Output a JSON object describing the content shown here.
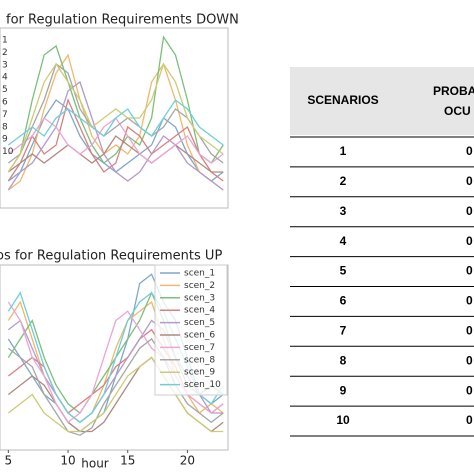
{
  "chart_data": [
    {
      "type": "line",
      "title": "for Regulation Requirements DOWN",
      "x": [
        5,
        6,
        7,
        8,
        9,
        10,
        11,
        12,
        13,
        14,
        15,
        16,
        17,
        18,
        19,
        20,
        21,
        22,
        23
      ],
      "xlim": [
        4.3,
        23.4
      ],
      "ylim": [
        0,
        1
      ],
      "series": [
        {
          "name": "1",
          "color": "#7fa7c9",
          "values": [
            0.15,
            0.2,
            0.35,
            0.5,
            0.6,
            0.55,
            0.4,
            0.3,
            0.25,
            0.2,
            0.25,
            0.3,
            0.35,
            0.5,
            0.45,
            0.3,
            0.2,
            0.15,
            0.2
          ]
        },
        {
          "name": "2",
          "color": "#f0b86e",
          "values": [
            0.1,
            0.15,
            0.3,
            0.55,
            0.75,
            0.85,
            0.6,
            0.4,
            0.3,
            0.35,
            0.3,
            0.4,
            0.7,
            0.8,
            0.6,
            0.35,
            0.2,
            0.15,
            0.1
          ]
        },
        {
          "name": "3",
          "color": "#7bbf7b",
          "values": [
            0.2,
            0.3,
            0.6,
            0.85,
            0.9,
            0.7,
            0.5,
            0.35,
            0.25,
            0.3,
            0.4,
            0.35,
            0.5,
            0.95,
            0.85,
            0.6,
            0.3,
            0.25,
            0.35
          ]
        },
        {
          "name": "4",
          "color": "#d98080",
          "values": [
            0.15,
            0.25,
            0.4,
            0.3,
            0.35,
            0.6,
            0.45,
            0.3,
            0.2,
            0.25,
            0.45,
            0.4,
            0.3,
            0.35,
            0.4,
            0.45,
            0.3,
            0.2,
            0.15
          ]
        },
        {
          "name": "5",
          "color": "#b39bcc",
          "values": [
            0.1,
            0.2,
            0.25,
            0.35,
            0.45,
            0.65,
            0.7,
            0.5,
            0.3,
            0.2,
            0.15,
            0.2,
            0.3,
            0.4,
            0.35,
            0.25,
            0.2,
            0.15,
            0.1
          ]
        },
        {
          "name": "6",
          "color": "#b08a80",
          "values": [
            0.2,
            0.25,
            0.3,
            0.25,
            0.3,
            0.35,
            0.3,
            0.25,
            0.3,
            0.4,
            0.35,
            0.3,
            0.25,
            0.3,
            0.35,
            0.3,
            0.25,
            0.2,
            0.2
          ]
        },
        {
          "name": "7",
          "color": "#eaa6d4",
          "values": [
            0.3,
            0.35,
            0.4,
            0.5,
            0.45,
            0.35,
            0.3,
            0.35,
            0.45,
            0.5,
            0.4,
            0.3,
            0.25,
            0.3,
            0.35,
            0.4,
            0.3,
            0.25,
            0.3
          ]
        },
        {
          "name": "8",
          "color": "#a6a6a6",
          "values": [
            0.25,
            0.3,
            0.45,
            0.6,
            0.8,
            0.75,
            0.55,
            0.45,
            0.4,
            0.45,
            0.5,
            0.45,
            0.4,
            0.45,
            0.55,
            0.5,
            0.4,
            0.3,
            0.25
          ]
        },
        {
          "name": "9",
          "color": "#cccc77",
          "values": [
            0.2,
            0.3,
            0.5,
            0.7,
            0.8,
            0.7,
            0.6,
            0.45,
            0.5,
            0.55,
            0.5,
            0.5,
            0.6,
            0.8,
            0.7,
            0.5,
            0.4,
            0.35,
            0.3
          ]
        },
        {
          "name": "10",
          "color": "#6fcfd9",
          "values": [
            0.35,
            0.4,
            0.45,
            0.4,
            0.5,
            0.55,
            0.5,
            0.45,
            0.4,
            0.5,
            0.55,
            0.45,
            0.4,
            0.5,
            0.6,
            0.55,
            0.45,
            0.4,
            0.35
          ]
        }
      ]
    },
    {
      "type": "line",
      "title": "os for Regulation Requirements UP",
      "xlabel": "hour",
      "x": [
        5,
        6,
        7,
        8,
        9,
        10,
        11,
        12,
        13,
        14,
        15,
        16,
        17,
        18,
        19,
        20,
        21,
        22,
        23
      ],
      "xlim": [
        4.3,
        23.4
      ],
      "xticks": [
        5,
        10,
        15,
        20
      ],
      "ylim": [
        0,
        1
      ],
      "series": [
        {
          "name": "scen_1",
          "color": "#7fa7c9",
          "values": [
            0.6,
            0.5,
            0.4,
            0.3,
            0.25,
            0.15,
            0.1,
            0.15,
            0.2,
            0.4,
            0.6,
            0.9,
            0.95,
            0.8,
            0.7,
            0.5,
            0.3,
            0.25,
            0.3
          ]
        },
        {
          "name": "scen_2",
          "color": "#f0b86e",
          "values": [
            0.7,
            0.8,
            0.6,
            0.4,
            0.3,
            0.2,
            0.15,
            0.2,
            0.35,
            0.55,
            0.7,
            0.75,
            0.8,
            0.6,
            0.4,
            0.3,
            0.2,
            0.25,
            0.2
          ]
        },
        {
          "name": "scen_3",
          "color": "#7bbf7b",
          "values": [
            0.5,
            0.6,
            0.7,
            0.5,
            0.35,
            0.25,
            0.2,
            0.3,
            0.4,
            0.5,
            0.6,
            0.7,
            0.85,
            0.7,
            0.5,
            0.35,
            0.3,
            0.35,
            0.3
          ]
        },
        {
          "name": "scen_4",
          "color": "#d98080",
          "values": [
            0.4,
            0.45,
            0.5,
            0.45,
            0.3,
            0.2,
            0.25,
            0.3,
            0.35,
            0.45,
            0.5,
            0.6,
            0.65,
            0.55,
            0.45,
            0.3,
            0.25,
            0.2,
            0.25
          ]
        },
        {
          "name": "scen_5",
          "color": "#b39bcc",
          "values": [
            0.65,
            0.7,
            0.55,
            0.4,
            0.3,
            0.2,
            0.15,
            0.2,
            0.3,
            0.4,
            0.5,
            0.6,
            0.7,
            0.65,
            0.5,
            0.4,
            0.3,
            0.2,
            0.2
          ]
        },
        {
          "name": "scen_6",
          "color": "#b08a80",
          "values": [
            0.3,
            0.35,
            0.4,
            0.35,
            0.25,
            0.15,
            0.1,
            0.1,
            0.15,
            0.25,
            0.35,
            0.45,
            0.5,
            0.4,
            0.3,
            0.2,
            0.15,
            0.1,
            0.15
          ]
        },
        {
          "name": "scen_7",
          "color": "#eaa6d4",
          "values": [
            0.8,
            0.7,
            0.5,
            0.4,
            0.25,
            0.15,
            0.2,
            0.3,
            0.5,
            0.7,
            0.75,
            0.65,
            0.55,
            0.5,
            0.4,
            0.3,
            0.25,
            0.2,
            0.25
          ]
        },
        {
          "name": "scen_8",
          "color": "#a6a6a6",
          "values": [
            0.55,
            0.5,
            0.45,
            0.3,
            0.2,
            0.1,
            0.08,
            0.12,
            0.25,
            0.35,
            0.45,
            0.55,
            0.6,
            0.5,
            0.35,
            0.25,
            0.2,
            0.15,
            0.2
          ]
        },
        {
          "name": "scen_9",
          "color": "#cccc77",
          "values": [
            0.2,
            0.25,
            0.3,
            0.2,
            0.15,
            0.1,
            0.1,
            0.15,
            0.2,
            0.3,
            0.4,
            0.45,
            0.5,
            0.4,
            0.3,
            0.2,
            0.15,
            0.1,
            0.1
          ]
        },
        {
          "name": "scen_10",
          "color": "#6fcfd9",
          "values": [
            0.75,
            0.85,
            0.65,
            0.45,
            0.3,
            0.2,
            0.15,
            0.2,
            0.3,
            0.5,
            0.7,
            0.8,
            0.85,
            0.75,
            0.6,
            0.45,
            0.3,
            0.25,
            0.35
          ]
        }
      ]
    }
  ],
  "table": {
    "header": [
      "SCENARIOS",
      "PROBA",
      "OCU"
    ],
    "rows": [
      [
        "1",
        "0"
      ],
      [
        "2",
        "0"
      ],
      [
        "3",
        "0"
      ],
      [
        "4",
        "0"
      ],
      [
        "5",
        "0"
      ],
      [
        "6",
        "0"
      ],
      [
        "7",
        "0"
      ],
      [
        "8",
        "0"
      ],
      [
        "9",
        "0"
      ],
      [
        "10",
        "0"
      ]
    ]
  }
}
